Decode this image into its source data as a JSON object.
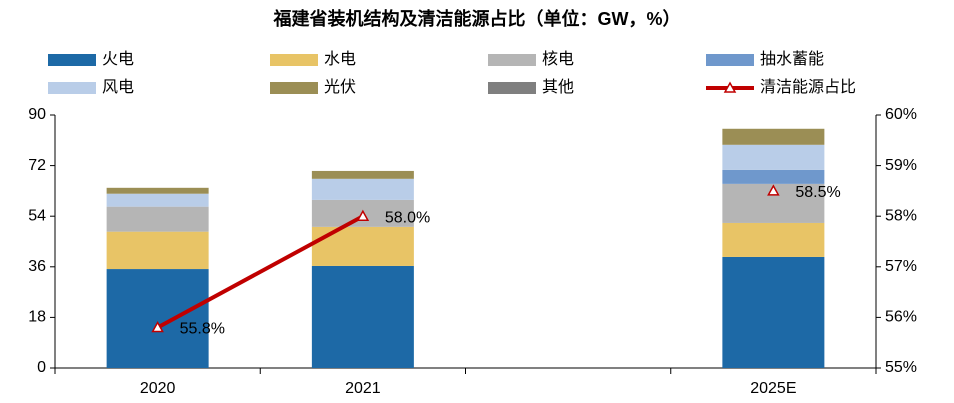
{
  "chart_data": {
    "type": "bar",
    "stacked": true,
    "title": "福建省装机结构及清洁能源占比（单位：GW，%）",
    "categories": [
      "2020",
      "2021",
      null,
      "2025E"
    ],
    "series": [
      {
        "name": "火电",
        "color": "#1d69a6",
        "values": [
          35.2,
          36.3,
          null,
          39.5
        ]
      },
      {
        "name": "水电",
        "color": "#e8c466",
        "values": [
          13.3,
          13.9,
          null,
          12.1
        ]
      },
      {
        "name": "核电",
        "color": "#b5b5b5",
        "values": [
          8.9,
          9.6,
          null,
          13.9
        ]
      },
      {
        "name": "抽水蓄能",
        "color": "#6f98cc",
        "values": [
          0,
          0,
          null,
          5
        ]
      },
      {
        "name": "风电",
        "color": "#b9cde8",
        "values": [
          4.6,
          7.5,
          null,
          8.9
        ]
      },
      {
        "name": "光伏",
        "color": "#9b8e55",
        "values": [
          2.1,
          2.8,
          null,
          5.7
        ]
      },
      {
        "name": "其他",
        "color": "#7f7f7f",
        "values": [
          0,
          0,
          null,
          0
        ]
      },
      {
        "name": "清洁能源占比",
        "type": "line",
        "axis": "y2",
        "color": "#c00000",
        "values": [
          55.8,
          58.0,
          null,
          58.5
        ],
        "value_labels": [
          "55.8%",
          "58.0%",
          null,
          "58.5%"
        ]
      }
    ],
    "ylim": [
      0,
      90
    ],
    "yticks": [
      0,
      18,
      36,
      54,
      72,
      90
    ],
    "y2lim": [
      55,
      60
    ],
    "y2ticks": [
      {
        "value": 55,
        "label": "55%"
      },
      {
        "value": 56,
        "label": "56%"
      },
      {
        "value": 57,
        "label": "57%"
      },
      {
        "value": 58,
        "label": "58%"
      },
      {
        "value": 59,
        "label": "59%"
      },
      {
        "value": 60,
        "label": "60%"
      }
    ],
    "legend": "top"
  }
}
